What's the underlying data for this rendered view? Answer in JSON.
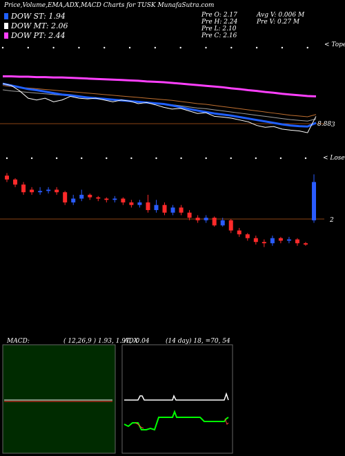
{
  "header": {
    "title": "Price,Volume,EMA,ADX,MACD Charts for TUSK MunafaSutra.com",
    "stats_left": [
      "Pre   O: 2.17",
      "Pre   H: 2.24",
      "Pre   L: 2.10",
      "Pre   C: 2.16"
    ],
    "stats_right": [
      "Avg V: 0.006  M",
      "Pre   V: 0.27  M"
    ]
  },
  "legend": [
    {
      "label": "DOW ST: 1.94",
      "color": "#2060ff"
    },
    {
      "label": "DOW MT: 2.06",
      "color": "#ffffff"
    },
    {
      "label": "DOW PT: 2.44",
      "color": "#ff40ff"
    }
  ],
  "colors": {
    "bull": "#2a5cff",
    "bear": "#ff2a2a",
    "macd_bg": "#002b00"
  },
  "chart_data": [
    {
      "type": "line",
      "name": "ema_panel",
      "x_count": 38,
      "corner_label": "< Tope",
      "price_label": "8.88",
      "side_label": "3",
      "series": [
        {
          "name": "DOW PT",
          "values": [
            4.1,
            4.1,
            4.09,
            4.09,
            4.08,
            4.08,
            4.07,
            4.07,
            4.06,
            4.05,
            4.04,
            4.03,
            4.02,
            4.01,
            4.0,
            3.99,
            3.98,
            3.96,
            3.95,
            3.94,
            3.92,
            3.9,
            3.88,
            3.86,
            3.84,
            3.82,
            3.8,
            3.77,
            3.75,
            3.72,
            3.7,
            3.67,
            3.65,
            3.62,
            3.6,
            3.58,
            3.56,
            3.55
          ]
        },
        {
          "name": "DOW MT",
          "values": [
            3.85,
            3.82,
            3.8,
            3.78,
            3.76,
            3.74,
            3.72,
            3.7,
            3.68,
            3.66,
            3.64,
            3.62,
            3.6,
            3.58,
            3.56,
            3.54,
            3.52,
            3.5,
            3.48,
            3.46,
            3.44,
            3.41,
            3.38,
            3.35,
            3.33,
            3.3,
            3.27,
            3.24,
            3.21,
            3.18,
            3.15,
            3.12,
            3.09,
            3.06,
            3.03,
            3.01,
            2.99,
            3.05
          ]
        },
        {
          "name": "DOW ST",
          "values": [
            3.9,
            3.85,
            3.8,
            3.75,
            3.72,
            3.68,
            3.64,
            3.6,
            3.58,
            3.55,
            3.52,
            3.5,
            3.48,
            3.46,
            3.44,
            3.42,
            3.4,
            3.38,
            3.36,
            3.34,
            3.3,
            3.25,
            3.2,
            3.16,
            3.12,
            3.08,
            3.05,
            3.02,
            2.98,
            2.94,
            2.9,
            2.86,
            2.82,
            2.78,
            2.75,
            2.73,
            2.72,
            2.82
          ]
        },
        {
          "name": "Close",
          "values": [
            3.9,
            3.85,
            3.7,
            3.5,
            3.45,
            3.5,
            3.4,
            3.45,
            3.55,
            3.5,
            3.48,
            3.5,
            3.45,
            3.4,
            3.45,
            3.42,
            3.35,
            3.38,
            3.32,
            3.25,
            3.2,
            3.22,
            3.15,
            3.08,
            3.1,
            3.0,
            2.98,
            2.95,
            2.9,
            2.85,
            2.75,
            2.7,
            2.72,
            2.65,
            2.62,
            2.6,
            2.55,
            3.0
          ]
        }
      ]
    },
    {
      "type": "bar",
      "name": "price_panel",
      "x_count": 38,
      "corner_label": "< Losen",
      "side_label": "2",
      "candles": [
        [
          2.95,
          2.92,
          2.97,
          2.9
        ],
        [
          2.92,
          2.88,
          2.93,
          2.86
        ],
        [
          2.88,
          2.82,
          2.9,
          2.8
        ],
        [
          2.84,
          2.82,
          2.86,
          2.8
        ],
        [
          2.82,
          2.83,
          2.86,
          2.8
        ],
        [
          2.83,
          2.84,
          2.86,
          2.81
        ],
        [
          2.84,
          2.82,
          2.86,
          2.8
        ],
        [
          2.82,
          2.74,
          2.83,
          2.72
        ],
        [
          2.74,
          2.77,
          2.8,
          2.72
        ],
        [
          2.77,
          2.8,
          2.84,
          2.75
        ],
        [
          2.8,
          2.78,
          2.81,
          2.76
        ],
        [
          2.78,
          2.77,
          2.79,
          2.75
        ],
        [
          2.77,
          2.76,
          2.78,
          2.74
        ],
        [
          2.76,
          2.77,
          2.79,
          2.74
        ],
        [
          2.77,
          2.74,
          2.78,
          2.72
        ],
        [
          2.74,
          2.72,
          2.76,
          2.7
        ],
        [
          2.72,
          2.74,
          2.76,
          2.7
        ],
        [
          2.74,
          2.68,
          2.8,
          2.66
        ],
        [
          2.68,
          2.72,
          2.76,
          2.66
        ],
        [
          2.72,
          2.66,
          2.74,
          2.64
        ],
        [
          2.66,
          2.7,
          2.72,
          2.64
        ],
        [
          2.7,
          2.66,
          2.72,
          2.64
        ],
        [
          2.66,
          2.62,
          2.68,
          2.6
        ],
        [
          2.62,
          2.6,
          2.64,
          2.58
        ],
        [
          2.6,
          2.62,
          2.64,
          2.58
        ],
        [
          2.62,
          2.56,
          2.63,
          2.55
        ],
        [
          2.56,
          2.6,
          2.62,
          2.55
        ],
        [
          2.6,
          2.52,
          2.61,
          2.5
        ],
        [
          2.52,
          2.49,
          2.54,
          2.47
        ],
        [
          2.49,
          2.46,
          2.5,
          2.44
        ],
        [
          2.46,
          2.43,
          2.48,
          2.41
        ],
        [
          2.43,
          2.42,
          2.45,
          2.39
        ],
        [
          2.42,
          2.46,
          2.48,
          2.4
        ],
        [
          2.46,
          2.44,
          2.47,
          2.42
        ],
        [
          2.44,
          2.45,
          2.47,
          2.42
        ],
        [
          2.45,
          2.42,
          2.46,
          2.4
        ],
        [
          2.42,
          2.41,
          2.43,
          2.4
        ],
        [
          2.6,
          2.9,
          2.96,
          2.58
        ]
      ]
    },
    {
      "type": "line",
      "name": "macd_panel",
      "label": "MACD:",
      "values_text": "( 12,26,9 ) 1.93,  1.97,  -0.04"
    },
    {
      "type": "line",
      "name": "adx_panel",
      "label": "ADX",
      "values_text": "(14  day) 18,  =70,  54"
    }
  ]
}
